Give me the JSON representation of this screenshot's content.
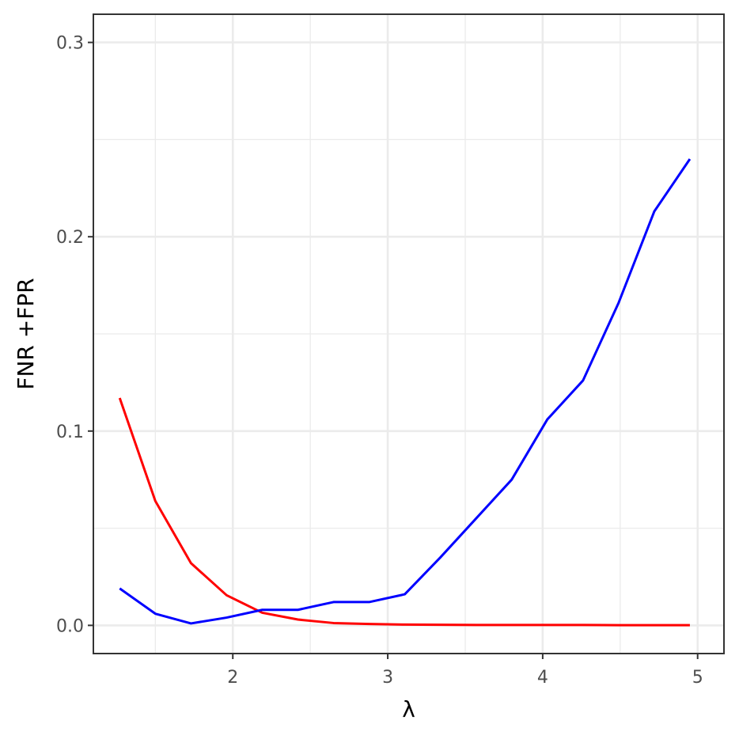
{
  "chart_data": {
    "type": "line",
    "title": "",
    "xlabel": "λ",
    "ylabel": "FNR +FPR",
    "xlim": [
      1.1,
      5.17
    ],
    "ylim": [
      -0.0145,
      0.3145
    ],
    "x_ticks": [
      2,
      3,
      4,
      5
    ],
    "x_tick_labels": [
      "2",
      "3",
      "4",
      "5"
    ],
    "y_ticks": [
      0,
      0.1,
      0.2,
      0.3
    ],
    "y_tick_labels": [
      "0.0",
      "0.1",
      "0.2",
      "0.3"
    ],
    "x_minor_ticks": [
      1.5,
      2.5,
      3.5,
      4.5
    ],
    "y_minor_ticks": [
      0.05,
      0.15,
      0.25
    ],
    "grid": true,
    "legend": "none",
    "series": [
      {
        "color": "#ff0000",
        "x": [
          1.27,
          1.5,
          1.73,
          1.96,
          2.19,
          2.42,
          2.65,
          2.88,
          3.11,
          3.34,
          3.57,
          3.8,
          4.03,
          4.26,
          4.49,
          4.72,
          4.95
        ],
        "y": [
          0.117,
          0.064,
          0.032,
          0.0155,
          0.0065,
          0.003,
          0.0012,
          0.0007,
          0.0004,
          0.0003,
          0.0002,
          0.0002,
          0.0002,
          0.0002,
          0.0001,
          0.0001,
          0.0001
        ]
      },
      {
        "color": "#0000ff",
        "x": [
          1.27,
          1.5,
          1.73,
          1.96,
          2.19,
          2.42,
          2.65,
          2.88,
          3.11,
          3.34,
          3.57,
          3.8,
          4.03,
          4.26,
          4.49,
          4.72,
          4.95
        ],
        "y": [
          0.019,
          0.006,
          0.001,
          0.004,
          0.008,
          0.008,
          0.012,
          0.012,
          0.016,
          0.035,
          0.055,
          0.075,
          0.106,
          0.126,
          0.166,
          0.213,
          0.24
        ]
      }
    ]
  }
}
